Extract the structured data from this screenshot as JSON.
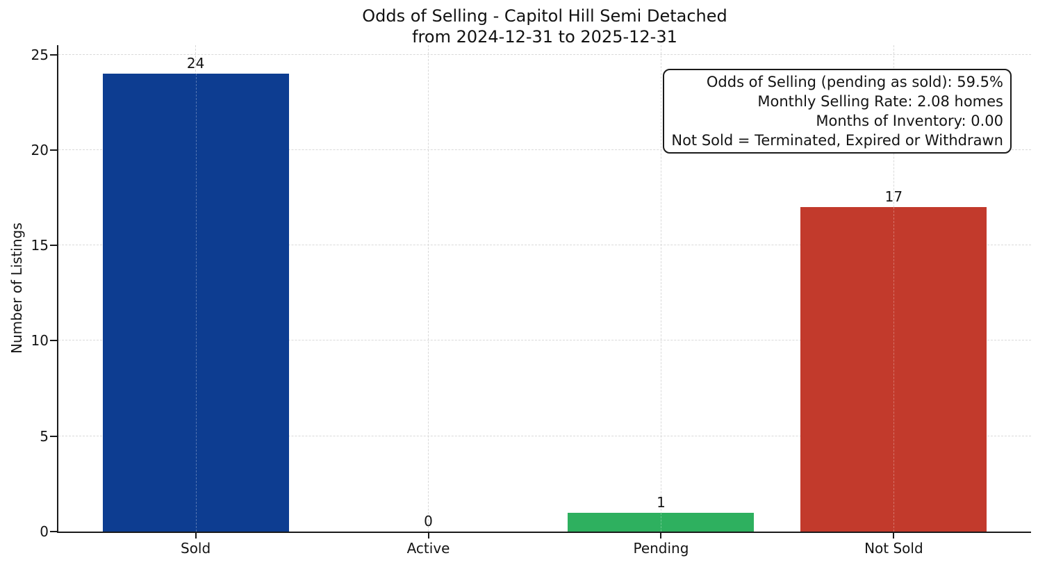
{
  "chart_data": {
    "type": "bar",
    "title": "Odds of Selling - Capitol Hill Semi Detached\nfrom 2024-12-31 to 2025-12-31",
    "title_line1": "Odds of Selling - Capitol Hill Semi Detached",
    "title_line2": "from 2024-12-31 to 2025-12-31",
    "ylabel": "Number of Listings",
    "xlabel": "",
    "categories": [
      "Sold",
      "Active",
      "Pending",
      "Not Sold"
    ],
    "values": [
      24,
      0,
      1,
      17
    ],
    "value_labels": [
      "24",
      "0",
      "1",
      "17"
    ],
    "bar_colors": [
      "#0d3d91",
      null,
      "#2eb05f",
      "#c23a2c"
    ],
    "yticks": [
      0,
      5,
      10,
      15,
      20,
      25
    ],
    "ylim": [
      0,
      25
    ],
    "grid": {
      "style": "dashed",
      "axes": "both",
      "color": "#d9d9d9"
    },
    "legend": "none",
    "annotation": {
      "position": "top-right",
      "lines": [
        "Odds of Selling (pending as sold): 59.5%",
        "Monthly Selling Rate: 2.08 homes",
        "Months of Inventory: 0.00",
        "Not Sold = Terminated, Expired or Withdrawn"
      ]
    }
  }
}
